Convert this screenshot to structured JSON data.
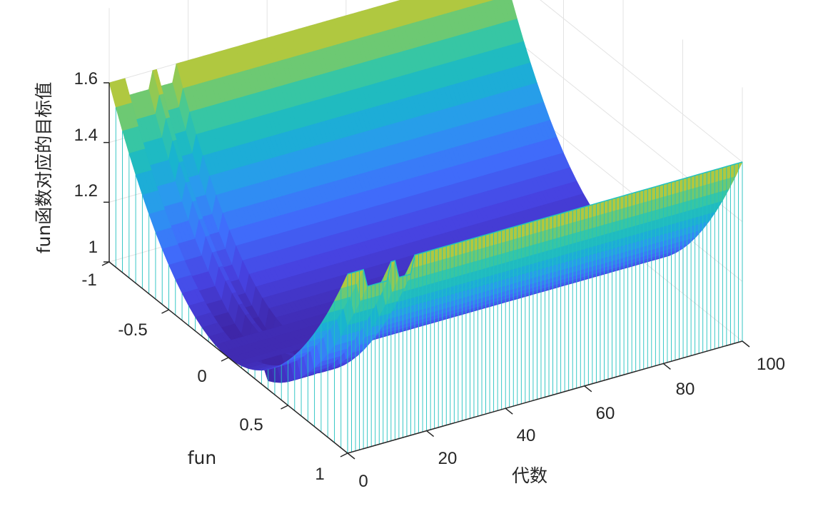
{
  "chart_data": {
    "type": "surface",
    "xlabel": "代数",
    "ylabel": "fun",
    "zlabel": "fun函数对应的目标值",
    "xlim": [
      0,
      100
    ],
    "ylim": [
      -1,
      1
    ],
    "zlim": [
      1,
      1.6
    ],
    "xticks": [
      "0",
      "20",
      "40",
      "60",
      "80",
      "100"
    ],
    "yticks": [
      "-1",
      "-0.5",
      "0",
      "0.5",
      "1"
    ],
    "zticks": [
      "1",
      "1.2",
      "1.4",
      "1.6"
    ],
    "colormap": [
      "#3e26a8",
      "#4743e2",
      "#3f6ffc",
      "#2b98f0",
      "#17b6cc",
      "#3ec99b",
      "#a8c940",
      "#f9bd3c",
      "#f8fa0d"
    ],
    "surface": {
      "description_formula": "z = 1 + 0.6*y^2 over interior; edges dropped to z=1",
      "curvature": 0.6,
      "base": 1.0,
      "bumps": [
        {
          "x_from": 5,
          "x_to": 10,
          "z_offset": -0.06
        },
        {
          "x_from": 13,
          "x_to": 16,
          "z_offset": -0.06
        }
      ]
    },
    "grid": true
  }
}
